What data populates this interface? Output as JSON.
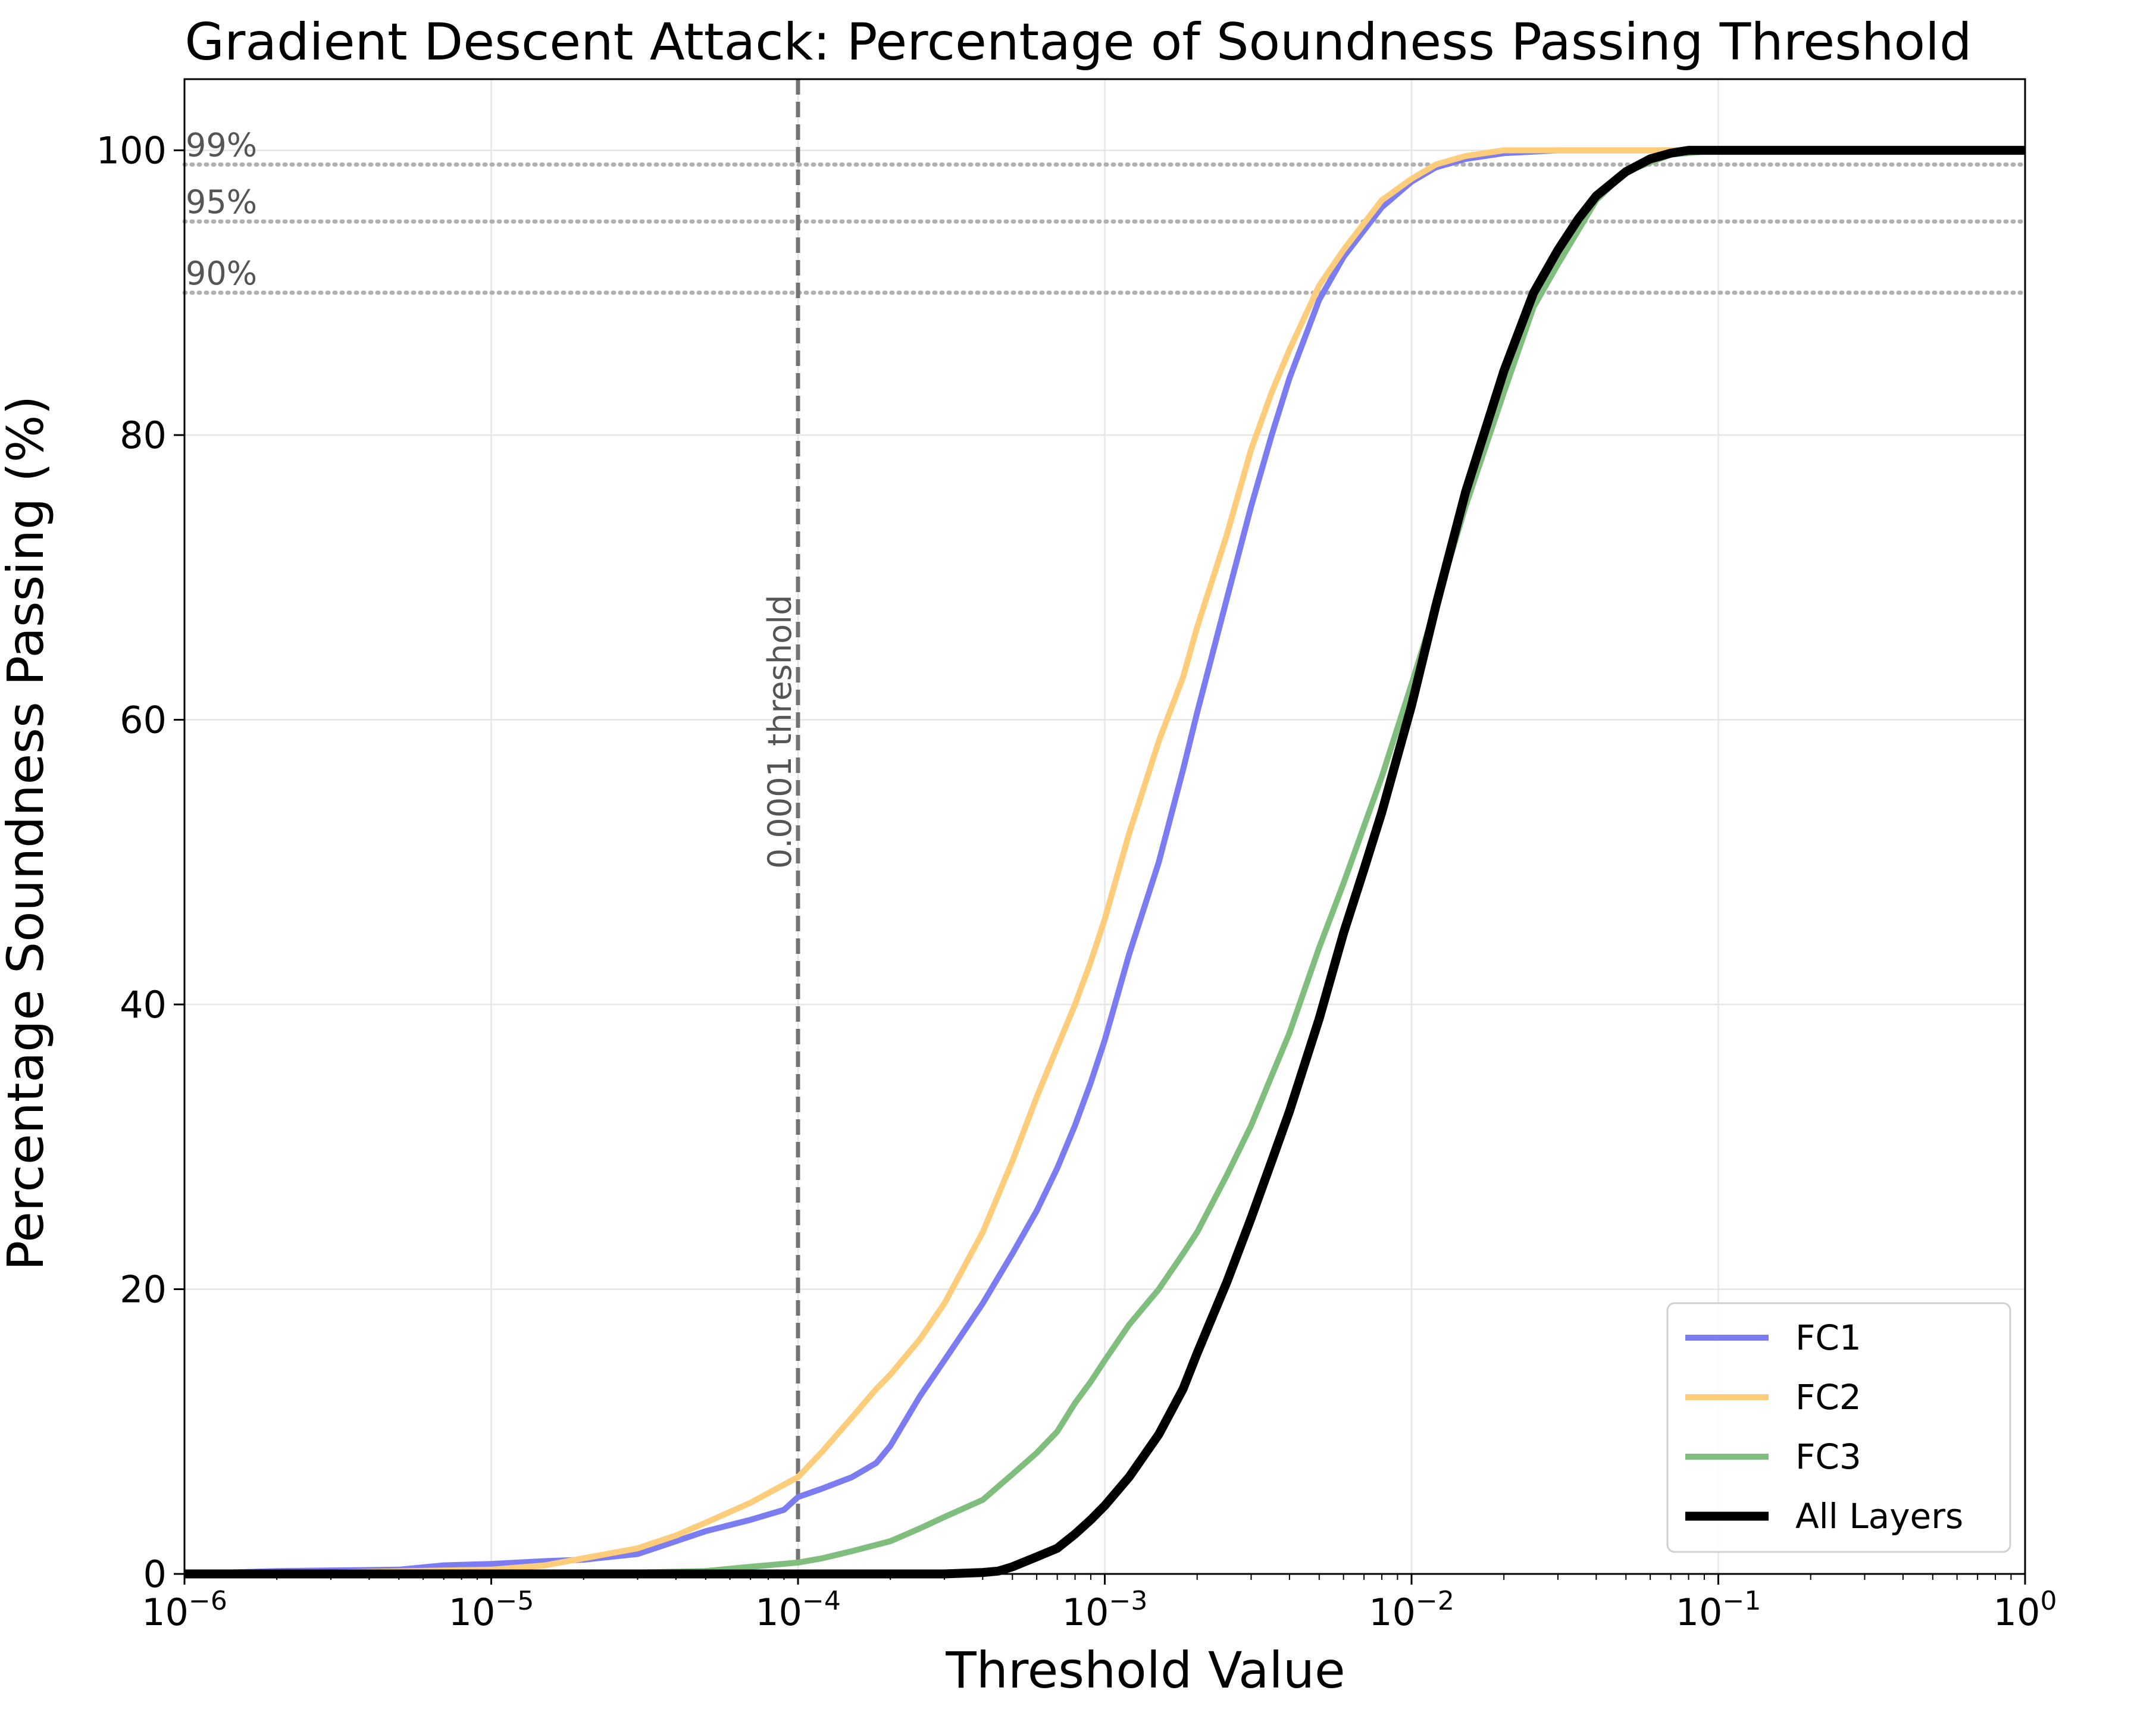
{
  "chart_data": {
    "type": "line",
    "title": "Gradient Descent Attack: Percentage of Soundness Passing Threshold",
    "xlabel": "Threshold Value",
    "ylabel": "Percentage Soundness Passing (%)",
    "xscale": "log",
    "xlim": [
      1e-06,
      1
    ],
    "ylim": [
      0,
      105
    ],
    "grid": true,
    "legend_position": "bottom-right",
    "x_ticks": [
      {
        "value": 1e-06,
        "base": "10",
        "exp": "−6"
      },
      {
        "value": 1e-05,
        "base": "10",
        "exp": "−5"
      },
      {
        "value": 0.0001,
        "base": "10",
        "exp": "−4"
      },
      {
        "value": 0.001,
        "base": "10",
        "exp": "−3"
      },
      {
        "value": 0.01,
        "base": "10",
        "exp": "−2"
      },
      {
        "value": 0.1,
        "base": "10",
        "exp": "−1"
      },
      {
        "value": 1,
        "base": "10",
        "exp": "0"
      }
    ],
    "y_ticks": [
      0,
      20,
      40,
      60,
      80,
      100
    ],
    "reference_lines": [
      {
        "y": 99,
        "label": "99%"
      },
      {
        "y": 95,
        "label": "95%"
      },
      {
        "y": 90,
        "label": "90%"
      }
    ],
    "vertical_line": {
      "x": 0.0001,
      "label": "0.0001 threshold"
    },
    "series": [
      {
        "name": "FC1",
        "color": "#7b7bf2",
        "x": [
          1e-06,
          2e-06,
          5e-06,
          7e-06,
          1e-05,
          1.5e-05,
          2e-05,
          3e-05,
          4e-05,
          5e-05,
          7e-05,
          9e-05,
          0.0001,
          0.00012,
          0.00015,
          0.00018,
          0.0002,
          0.00025,
          0.0003,
          0.0004,
          0.0005,
          0.0006,
          0.0007,
          0.0008,
          0.0009,
          0.001,
          0.0012,
          0.0015,
          0.0018,
          0.002,
          0.0025,
          0.003,
          0.0035,
          0.004,
          0.005,
          0.006,
          0.008,
          0.01,
          0.012,
          0.015,
          0.02,
          0.03,
          0.05,
          0.1,
          1
        ],
        "y": [
          0,
          0.2,
          0.3,
          0.6,
          0.7,
          0.9,
          1.0,
          1.4,
          2.3,
          3.0,
          3.8,
          4.5,
          5.4,
          6.0,
          6.8,
          7.8,
          9.0,
          12.5,
          15.0,
          19.0,
          22.5,
          25.5,
          28.5,
          31.5,
          34.5,
          37.5,
          43.5,
          50.0,
          56.5,
          60.5,
          68.5,
          75.0,
          80.0,
          84.0,
          89.5,
          92.5,
          96.0,
          97.8,
          98.8,
          99.4,
          99.8,
          100,
          100,
          100,
          100
        ]
      },
      {
        "name": "FC2",
        "color": "#fdcd7b",
        "x": [
          1e-06,
          3e-06,
          1e-05,
          1.5e-05,
          2e-05,
          3e-05,
          4e-05,
          5e-05,
          7e-05,
          0.0001,
          0.00012,
          0.00015,
          0.00018,
          0.0002,
          0.00025,
          0.0003,
          0.0004,
          0.0005,
          0.0006,
          0.0007,
          0.0008,
          0.0009,
          0.001,
          0.0012,
          0.0015,
          0.0018,
          0.002,
          0.0025,
          0.003,
          0.0035,
          0.004,
          0.005,
          0.006,
          0.008,
          0.01,
          0.012,
          0.015,
          0.02,
          0.03,
          0.05,
          0.1,
          1
        ],
        "y": [
          0,
          0.1,
          0.3,
          0.6,
          1.1,
          1.8,
          2.7,
          3.6,
          5.0,
          6.8,
          8.6,
          11.0,
          13.0,
          14.0,
          16.5,
          19.0,
          24.0,
          29.0,
          33.5,
          37.0,
          40.0,
          43.0,
          46.0,
          52.0,
          58.5,
          63.0,
          66.5,
          73.0,
          79.0,
          83.0,
          86.0,
          90.5,
          93.0,
          96.5,
          98.0,
          99.0,
          99.6,
          100,
          100,
          100,
          100,
          100
        ]
      },
      {
        "name": "FC3",
        "color": "#80be7d",
        "x": [
          1e-06,
          1e-05,
          3e-05,
          5e-05,
          7e-05,
          0.0001,
          0.00012,
          0.00015,
          0.0002,
          0.00025,
          0.0003,
          0.0004,
          0.0005,
          0.0006,
          0.0007,
          0.0008,
          0.0009,
          0.001,
          0.0012,
          0.0015,
          0.0018,
          0.002,
          0.0025,
          0.003,
          0.0035,
          0.004,
          0.005,
          0.006,
          0.008,
          0.01,
          0.012,
          0.015,
          0.02,
          0.025,
          0.03,
          0.04,
          0.05,
          0.07,
          0.1,
          1
        ],
        "y": [
          0,
          0,
          0.1,
          0.2,
          0.5,
          0.8,
          1.1,
          1.6,
          2.3,
          3.2,
          4.0,
          5.2,
          7.0,
          8.5,
          10.0,
          12.0,
          13.5,
          15.0,
          17.5,
          20.0,
          22.5,
          24.0,
          28.0,
          31.5,
          35.0,
          38.0,
          44.0,
          48.5,
          56.0,
          62.5,
          68.0,
          75.0,
          83.0,
          89.0,
          92.0,
          96.5,
          98.5,
          99.7,
          100,
          100
        ]
      },
      {
        "name": "All Layers",
        "color": "#000000",
        "x": [
          1e-06,
          0.0001,
          0.0003,
          0.0004,
          0.00045,
          0.0005,
          0.0006,
          0.0007,
          0.0008,
          0.0009,
          0.001,
          0.0012,
          0.0015,
          0.0018,
          0.002,
          0.0025,
          0.003,
          0.0035,
          0.004,
          0.005,
          0.006,
          0.007,
          0.008,
          0.01,
          0.012,
          0.015,
          0.02,
          0.025,
          0.03,
          0.035,
          0.04,
          0.05,
          0.06,
          0.07,
          0.08,
          0.1,
          1
        ],
        "y": [
          0,
          0,
          0,
          0.1,
          0.2,
          0.5,
          1.2,
          1.8,
          2.8,
          3.8,
          4.8,
          6.8,
          9.8,
          13.0,
          15.5,
          20.5,
          25.0,
          29.0,
          32.5,
          39.0,
          45.0,
          49.5,
          53.5,
          61.0,
          68.0,
          76.0,
          84.5,
          90.0,
          93.0,
          95.2,
          96.8,
          98.5,
          99.4,
          99.8,
          100,
          100,
          100
        ]
      }
    ]
  }
}
